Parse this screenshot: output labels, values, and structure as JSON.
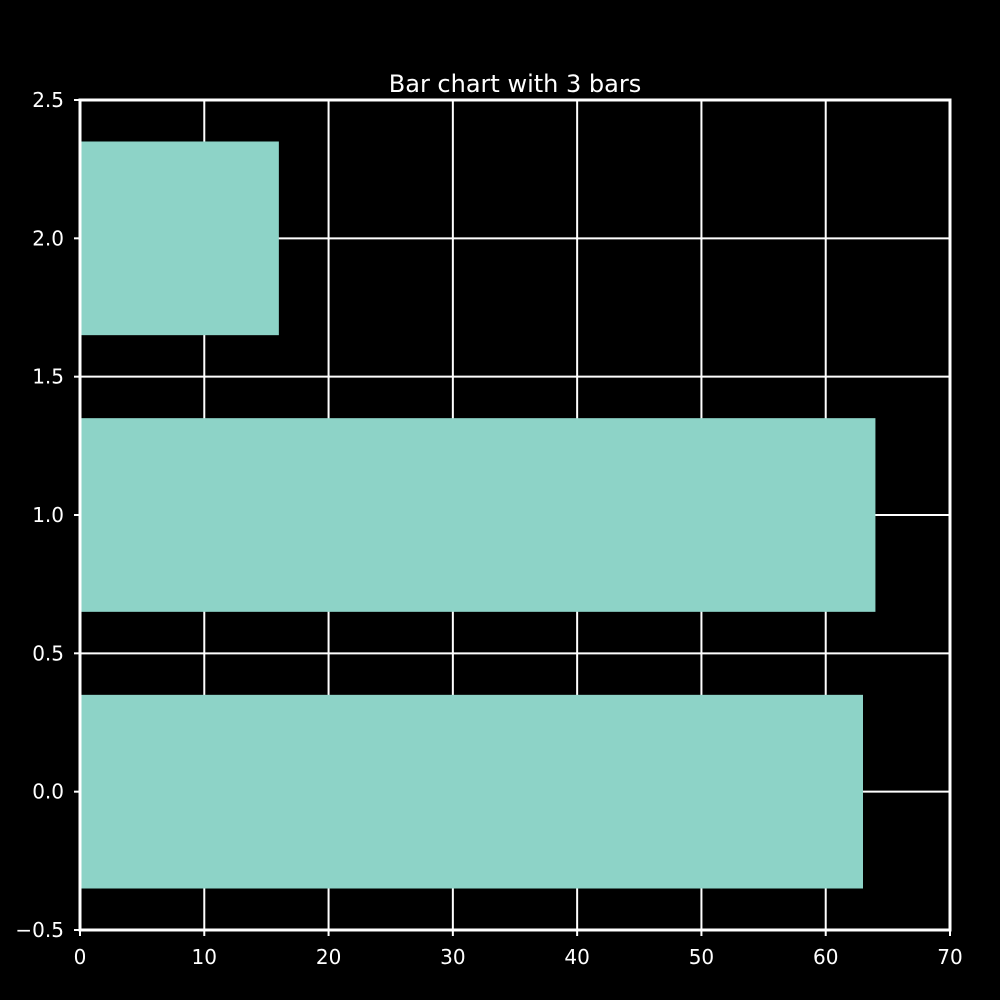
{
  "chart_data": {
    "type": "bar",
    "orientation": "horizontal",
    "title": "Bar chart with 3 bars",
    "xlabel": "",
    "ylabel": "",
    "y": [
      0,
      1,
      2
    ],
    "values": [
      63,
      64,
      16
    ],
    "xlim": [
      0,
      70
    ],
    "ylim": [
      -0.5,
      2.5
    ],
    "xticks": [
      0,
      10,
      20,
      30,
      40,
      50,
      60,
      70
    ],
    "xtick_labels": [
      "0",
      "10",
      "20",
      "30",
      "40",
      "50",
      "60",
      "70"
    ],
    "yticks": [
      -0.5,
      0.0,
      0.5,
      1.0,
      1.5,
      2.0,
      2.5
    ],
    "ytick_labels": [
      "−0.5",
      "0.0",
      "0.5",
      "1.0",
      "1.5",
      "2.0",
      "2.5"
    ],
    "bar_width": 0.35,
    "grid": true,
    "colors": {
      "background": "#000000",
      "bar": "#8dd3c7",
      "axes": "#ffffff",
      "grid": "#ffffff",
      "text": "#ffffff"
    }
  }
}
